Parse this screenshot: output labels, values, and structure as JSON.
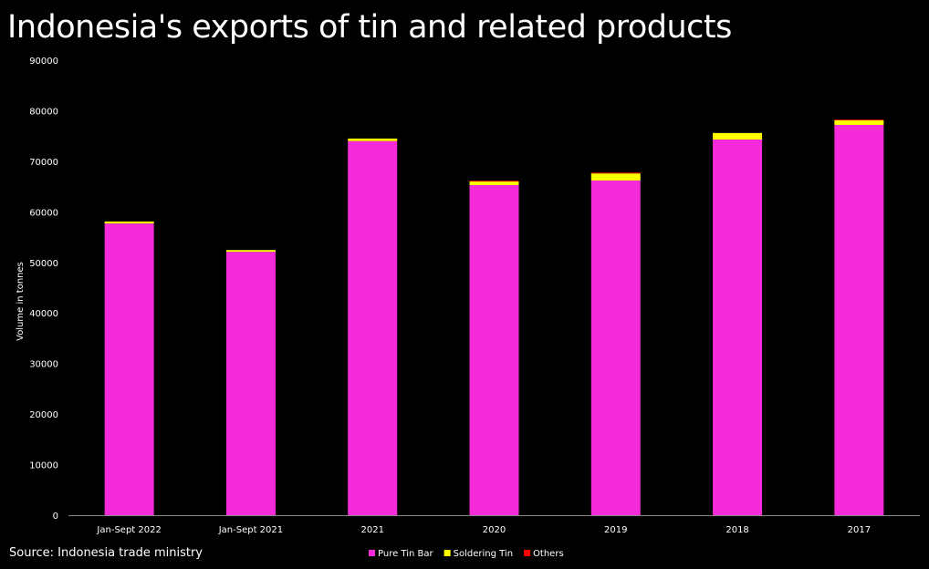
{
  "chart_data": {
    "type": "bar",
    "stacked": true,
    "title": "Indonesia's exports of tin and related products",
    "ylabel": "Volume in tonnes",
    "xlabel": "",
    "source": "Source: Indonesia trade ministry",
    "ylim": [
      0,
      90000
    ],
    "yticks": [
      0,
      10000,
      20000,
      30000,
      40000,
      50000,
      60000,
      70000,
      80000,
      90000
    ],
    "grid": false,
    "legend_position": "bottom",
    "categories": [
      "Jan-Sept 2022",
      "Jan-Sept 2021",
      "2021",
      "2020",
      "2019",
      "2018",
      "2017"
    ],
    "series": [
      {
        "name": "Pure Tin Bar",
        "color": "#f52bd9",
        "values": [
          57700,
          52100,
          74000,
          65300,
          66200,
          74300,
          77200
        ]
      },
      {
        "name": "Soldering Tin",
        "color": "#ffff00",
        "values": [
          400,
          350,
          500,
          700,
          1400,
          1300,
          900
        ]
      },
      {
        "name": "Others",
        "color": "#ff0000",
        "values": [
          0,
          0,
          0,
          150,
          150,
          0,
          150
        ]
      }
    ]
  }
}
